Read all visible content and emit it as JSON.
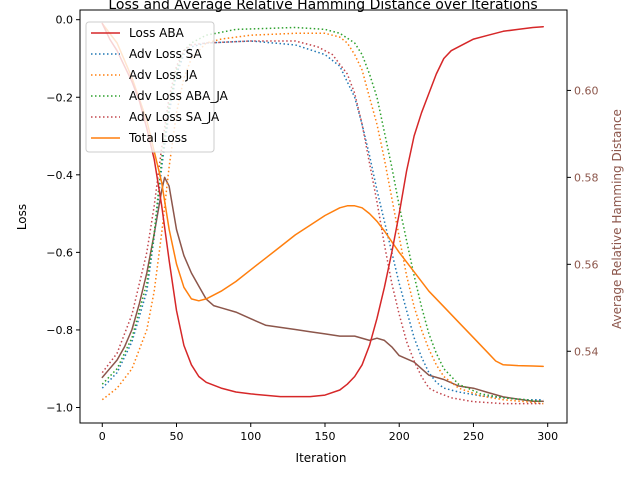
{
  "chart_data": {
    "type": "line",
    "title": "Loss and Average Relative Hamming Distance over Iterations",
    "xlabel": "Iteration",
    "ylabel": "Loss",
    "y2label": "Average Relative Hamming Distance",
    "xlim": [
      -15,
      313
    ],
    "ylim": [
      -1.04,
      0.025
    ],
    "y2lim": [
      0.5235,
      0.6185
    ],
    "xticks": [
      "0",
      "50",
      "100",
      "150",
      "200",
      "250",
      "300"
    ],
    "yticks": [
      "0.0",
      "−0.2",
      "−0.4",
      "−0.6",
      "−0.8",
      "−1.0"
    ],
    "y2ticks": [
      "0.54",
      "0.56",
      "0.58",
      "0.60"
    ],
    "legend_position": "top-left",
    "series": [
      {
        "name": "Loss ABA",
        "axis": "left",
        "color": "#d62728",
        "style": "solid",
        "points": [
          [
            0,
            -0.01
          ],
          [
            5,
            -0.05
          ],
          [
            10,
            -0.08
          ],
          [
            15,
            -0.12
          ],
          [
            20,
            -0.16
          ],
          [
            25,
            -0.21
          ],
          [
            30,
            -0.28
          ],
          [
            35,
            -0.36
          ],
          [
            40,
            -0.48
          ],
          [
            45,
            -0.62
          ],
          [
            50,
            -0.75
          ],
          [
            55,
            -0.84
          ],
          [
            60,
            -0.89
          ],
          [
            65,
            -0.92
          ],
          [
            70,
            -0.935
          ],
          [
            80,
            -0.95
          ],
          [
            90,
            -0.96
          ],
          [
            100,
            -0.965
          ],
          [
            120,
            -0.972
          ],
          [
            140,
            -0.972
          ],
          [
            150,
            -0.968
          ],
          [
            160,
            -0.955
          ],
          [
            165,
            -0.94
          ],
          [
            170,
            -0.92
          ],
          [
            175,
            -0.89
          ],
          [
            180,
            -0.84
          ],
          [
            185,
            -0.77
          ],
          [
            190,
            -0.69
          ],
          [
            195,
            -0.6
          ],
          [
            200,
            -0.5
          ],
          [
            205,
            -0.39
          ],
          [
            210,
            -0.3
          ],
          [
            215,
            -0.24
          ],
          [
            220,
            -0.19
          ],
          [
            225,
            -0.14
          ],
          [
            230,
            -0.1
          ],
          [
            235,
            -0.08
          ],
          [
            240,
            -0.07
          ],
          [
            250,
            -0.05
          ],
          [
            260,
            -0.04
          ],
          [
            270,
            -0.03
          ],
          [
            280,
            -0.025
          ],
          [
            290,
            -0.02
          ],
          [
            297,
            -0.018
          ]
        ]
      },
      {
        "name": "Adv Loss SA",
        "axis": "left",
        "color": "#1f77b4",
        "style": "dotted",
        "points": [
          [
            0,
            -0.95
          ],
          [
            10,
            -0.91
          ],
          [
            20,
            -0.83
          ],
          [
            30,
            -0.7
          ],
          [
            35,
            -0.56
          ],
          [
            40,
            -0.38
          ],
          [
            45,
            -0.24
          ],
          [
            50,
            -0.14
          ],
          [
            55,
            -0.09
          ],
          [
            60,
            -0.07
          ],
          [
            70,
            -0.06
          ],
          [
            100,
            -0.055
          ],
          [
            130,
            -0.065
          ],
          [
            150,
            -0.09
          ],
          [
            160,
            -0.12
          ],
          [
            170,
            -0.2
          ],
          [
            175,
            -0.27
          ],
          [
            180,
            -0.35
          ],
          [
            185,
            -0.44
          ],
          [
            190,
            -0.52
          ],
          [
            195,
            -0.6
          ],
          [
            200,
            -0.68
          ],
          [
            205,
            -0.75
          ],
          [
            210,
            -0.82
          ],
          [
            215,
            -0.87
          ],
          [
            220,
            -0.91
          ],
          [
            225,
            -0.935
          ],
          [
            230,
            -0.95
          ],
          [
            240,
            -0.96
          ],
          [
            255,
            -0.97
          ],
          [
            270,
            -0.975
          ],
          [
            285,
            -0.98
          ],
          [
            297,
            -0.98
          ]
        ]
      },
      {
        "name": "Adv Loss JA",
        "axis": "left",
        "color": "#ff7f0e",
        "style": "dotted",
        "points": [
          [
            0,
            -0.98
          ],
          [
            10,
            -0.95
          ],
          [
            20,
            -0.9
          ],
          [
            30,
            -0.8
          ],
          [
            35,
            -0.7
          ],
          [
            40,
            -0.55
          ],
          [
            45,
            -0.38
          ],
          [
            50,
            -0.24
          ],
          [
            55,
            -0.15
          ],
          [
            60,
            -0.1
          ],
          [
            70,
            -0.06
          ],
          [
            80,
            -0.05
          ],
          [
            100,
            -0.04
          ],
          [
            130,
            -0.035
          ],
          [
            150,
            -0.035
          ],
          [
            160,
            -0.045
          ],
          [
            165,
            -0.06
          ],
          [
            170,
            -0.09
          ],
          [
            175,
            -0.13
          ],
          [
            180,
            -0.2
          ],
          [
            185,
            -0.27
          ],
          [
            190,
            -0.36
          ],
          [
            195,
            -0.46
          ],
          [
            200,
            -0.56
          ],
          [
            205,
            -0.66
          ],
          [
            210,
            -0.74
          ],
          [
            215,
            -0.8
          ],
          [
            220,
            -0.85
          ],
          [
            225,
            -0.89
          ],
          [
            230,
            -0.92
          ],
          [
            240,
            -0.95
          ],
          [
            255,
            -0.97
          ],
          [
            270,
            -0.98
          ],
          [
            285,
            -0.985
          ],
          [
            297,
            -0.99
          ]
        ]
      },
      {
        "name": "Adv Loss ABA_JA",
        "axis": "left",
        "color": "#2ca02c",
        "style": "dotted",
        "points": [
          [
            0,
            -0.94
          ],
          [
            10,
            -0.9
          ],
          [
            20,
            -0.82
          ],
          [
            30,
            -0.68
          ],
          [
            35,
            -0.55
          ],
          [
            40,
            -0.36
          ],
          [
            45,
            -0.22
          ],
          [
            50,
            -0.13
          ],
          [
            55,
            -0.08
          ],
          [
            60,
            -0.06
          ],
          [
            70,
            -0.04
          ],
          [
            90,
            -0.025
          ],
          [
            130,
            -0.02
          ],
          [
            150,
            -0.025
          ],
          [
            160,
            -0.035
          ],
          [
            170,
            -0.06
          ],
          [
            175,
            -0.09
          ],
          [
            180,
            -0.14
          ],
          [
            185,
            -0.2
          ],
          [
            190,
            -0.29
          ],
          [
            195,
            -0.38
          ],
          [
            200,
            -0.48
          ],
          [
            205,
            -0.57
          ],
          [
            210,
            -0.66
          ],
          [
            215,
            -0.74
          ],
          [
            220,
            -0.81
          ],
          [
            225,
            -0.86
          ],
          [
            230,
            -0.9
          ],
          [
            240,
            -0.94
          ],
          [
            255,
            -0.965
          ],
          [
            270,
            -0.975
          ],
          [
            285,
            -0.98
          ],
          [
            297,
            -0.985
          ]
        ]
      },
      {
        "name": "Adv Loss SA_JA",
        "axis": "left",
        "color": "#c2464d",
        "style": "dotted",
        "points": [
          [
            0,
            -0.91
          ],
          [
            10,
            -0.86
          ],
          [
            20,
            -0.76
          ],
          [
            30,
            -0.6
          ],
          [
            35,
            -0.48
          ],
          [
            40,
            -0.33
          ],
          [
            45,
            -0.2
          ],
          [
            50,
            -0.12
          ],
          [
            55,
            -0.08
          ],
          [
            60,
            -0.065
          ],
          [
            70,
            -0.06
          ],
          [
            100,
            -0.055
          ],
          [
            130,
            -0.055
          ],
          [
            145,
            -0.07
          ],
          [
            155,
            -0.09
          ],
          [
            165,
            -0.14
          ],
          [
            170,
            -0.19
          ],
          [
            175,
            -0.27
          ],
          [
            180,
            -0.37
          ],
          [
            185,
            -0.47
          ],
          [
            190,
            -0.58
          ],
          [
            195,
            -0.68
          ],
          [
            200,
            -0.76
          ],
          [
            205,
            -0.83
          ],
          [
            210,
            -0.88
          ],
          [
            215,
            -0.92
          ],
          [
            220,
            -0.95
          ],
          [
            225,
            -0.96
          ],
          [
            235,
            -0.975
          ],
          [
            250,
            -0.985
          ],
          [
            270,
            -0.99
          ],
          [
            297,
            -0.99
          ]
        ]
      },
      {
        "name": "Total Loss",
        "axis": "left",
        "color": "#ff7f0e",
        "style": "solid",
        "points": [
          [
            0,
            -0.01
          ],
          [
            10,
            -0.06
          ],
          [
            20,
            -0.15
          ],
          [
            30,
            -0.26
          ],
          [
            40,
            -0.42
          ],
          [
            45,
            -0.54
          ],
          [
            50,
            -0.63
          ],
          [
            55,
            -0.69
          ],
          [
            60,
            -0.72
          ],
          [
            65,
            -0.725
          ],
          [
            70,
            -0.72
          ],
          [
            80,
            -0.7
          ],
          [
            90,
            -0.675
          ],
          [
            100,
            -0.645
          ],
          [
            110,
            -0.615
          ],
          [
            120,
            -0.585
          ],
          [
            130,
            -0.555
          ],
          [
            140,
            -0.53
          ],
          [
            150,
            -0.505
          ],
          [
            160,
            -0.485
          ],
          [
            165,
            -0.48
          ],
          [
            170,
            -0.48
          ],
          [
            175,
            -0.485
          ],
          [
            180,
            -0.5
          ],
          [
            185,
            -0.52
          ],
          [
            190,
            -0.545
          ],
          [
            200,
            -0.6
          ],
          [
            210,
            -0.65
          ],
          [
            220,
            -0.7
          ],
          [
            230,
            -0.74
          ],
          [
            240,
            -0.78
          ],
          [
            250,
            -0.82
          ],
          [
            260,
            -0.86
          ],
          [
            265,
            -0.88
          ],
          [
            270,
            -0.89
          ],
          [
            280,
            -0.892
          ],
          [
            290,
            -0.893
          ],
          [
            297,
            -0.894
          ]
        ]
      },
      {
        "name": "Average Relative Hamming Distance",
        "axis": "right",
        "color": "#8c564b",
        "style": "solid",
        "points": [
          [
            0,
            0.534
          ],
          [
            5,
            0.536
          ],
          [
            10,
            0.538
          ],
          [
            15,
            0.541
          ],
          [
            20,
            0.545
          ],
          [
            25,
            0.551
          ],
          [
            30,
            0.558
          ],
          [
            35,
            0.567
          ],
          [
            38,
            0.573
          ],
          [
            40,
            0.577
          ],
          [
            42,
            0.58
          ],
          [
            45,
            0.578
          ],
          [
            50,
            0.568
          ],
          [
            55,
            0.562
          ],
          [
            60,
            0.558
          ],
          [
            65,
            0.555
          ],
          [
            70,
            0.552
          ],
          [
            75,
            0.5505
          ],
          [
            80,
            0.55
          ],
          [
            90,
            0.549
          ],
          [
            100,
            0.5475
          ],
          [
            110,
            0.546
          ],
          [
            120,
            0.5455
          ],
          [
            130,
            0.545
          ],
          [
            140,
            0.5445
          ],
          [
            150,
            0.544
          ],
          [
            160,
            0.5435
          ],
          [
            170,
            0.5435
          ],
          [
            180,
            0.5425
          ],
          [
            185,
            0.543
          ],
          [
            190,
            0.5425
          ],
          [
            195,
            0.541
          ],
          [
            200,
            0.539
          ],
          [
            210,
            0.5375
          ],
          [
            215,
            0.536
          ],
          [
            220,
            0.5345
          ],
          [
            230,
            0.5335
          ],
          [
            240,
            0.532
          ],
          [
            250,
            0.5315
          ],
          [
            260,
            0.5305
          ],
          [
            270,
            0.5295
          ],
          [
            280,
            0.529
          ],
          [
            290,
            0.5285
          ],
          [
            297,
            0.5285
          ]
        ]
      }
    ]
  }
}
